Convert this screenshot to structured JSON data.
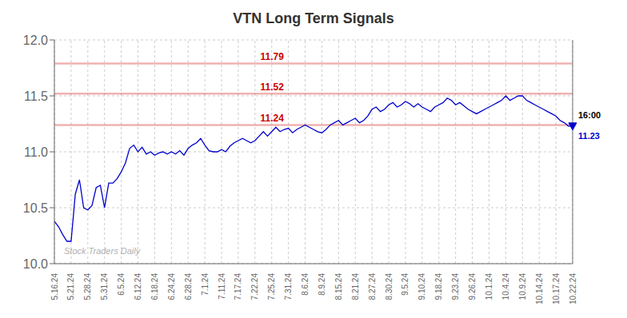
{
  "chart_data": {
    "type": "line",
    "title": "VTN Long Term Signals",
    "categories": [
      "5.16.24",
      null,
      null,
      null,
      "5.21.24",
      null,
      null,
      null,
      "5.28.24",
      null,
      null,
      null,
      "5.31.24",
      null,
      null,
      null,
      "6.5.24",
      null,
      null,
      null,
      "6.12.24",
      null,
      null,
      null,
      "6.18.24",
      null,
      null,
      null,
      "6.24.24",
      null,
      null,
      null,
      "6.28.24",
      null,
      null,
      null,
      "7.1.24",
      null,
      null,
      null,
      "7.11.24",
      null,
      null,
      null,
      "7.17.24",
      null,
      null,
      null,
      "7.22.24",
      null,
      null,
      null,
      "7.25.24",
      null,
      null,
      null,
      "7.31.24",
      null,
      null,
      null,
      "8.6.24",
      null,
      null,
      null,
      "8.9.24",
      null,
      null,
      null,
      "8.15.24",
      null,
      null,
      null,
      "8.21.24",
      null,
      null,
      null,
      "8.27.24",
      null,
      null,
      null,
      "8.30.24",
      null,
      null,
      null,
      "9.5.24",
      null,
      null,
      null,
      "9.10.24",
      null,
      null,
      null,
      "9.18.24",
      null,
      null,
      null,
      "9.23.24",
      null,
      null,
      null,
      "9.26.24",
      null,
      null,
      null,
      "10.1.24",
      null,
      null,
      null,
      "10.4.24",
      null,
      null,
      null,
      "10.9.24",
      null,
      null,
      null,
      "10.14.24",
      null,
      null,
      null,
      "10.17.24",
      null,
      null,
      null,
      "10.22.24"
    ],
    "series": [
      {
        "type": "line",
        "color": "#0000cc",
        "values": [
          10.38,
          10.33,
          10.26,
          10.2,
          10.2,
          10.62,
          10.75,
          10.5,
          10.48,
          10.52,
          10.68,
          10.7,
          10.5,
          10.72,
          10.72,
          10.76,
          10.82,
          10.9,
          11.03,
          11.06,
          11.0,
          11.04,
          10.98,
          11.0,
          10.97,
          10.99,
          11.0,
          10.98,
          11.0,
          10.98,
          11.01,
          10.97,
          11.03,
          11.06,
          11.08,
          11.12,
          11.06,
          11.01,
          11.0,
          11.0,
          11.02,
          11.0,
          11.05,
          11.08,
          11.1,
          11.12,
          11.1,
          11.08,
          11.1,
          11.14,
          11.18,
          11.14,
          11.18,
          11.22,
          11.18,
          11.2,
          11.21,
          11.17,
          11.2,
          11.22,
          11.24,
          11.22,
          11.2,
          11.18,
          11.17,
          11.2,
          11.24,
          11.26,
          11.28,
          11.24,
          11.26,
          11.28,
          11.3,
          11.26,
          11.28,
          11.32,
          11.38,
          11.4,
          11.36,
          11.38,
          11.42,
          11.44,
          11.4,
          11.42,
          11.45,
          11.43,
          11.4,
          11.43,
          11.4,
          11.38,
          11.36,
          11.4,
          11.42,
          11.44,
          11.48,
          11.46,
          11.42,
          11.44,
          11.41,
          11.38,
          11.36,
          11.34,
          11.36,
          11.38,
          11.4,
          11.42,
          11.44,
          11.46,
          11.5,
          11.46,
          11.48,
          11.5,
          11.5,
          11.46,
          11.44,
          11.42,
          11.4,
          11.38,
          11.36,
          11.34,
          11.32,
          11.28,
          11.26,
          11.23,
          11.23
        ]
      },
      {
        "type": "scatter",
        "marker": "triangle_down",
        "color": "#0000cc",
        "values": [
          null,
          null,
          null,
          null,
          null,
          null,
          null,
          null,
          null,
          null,
          null,
          null,
          null,
          null,
          null,
          null,
          null,
          null,
          null,
          null,
          null,
          null,
          null,
          null,
          null,
          null,
          null,
          null,
          null,
          null,
          null,
          null,
          null,
          null,
          null,
          null,
          null,
          null,
          null,
          null,
          null,
          null,
          null,
          null,
          null,
          null,
          null,
          null,
          null,
          null,
          null,
          null,
          null,
          null,
          null,
          null,
          null,
          null,
          null,
          null,
          null,
          null,
          null,
          null,
          null,
          null,
          null,
          null,
          null,
          null,
          null,
          null,
          null,
          null,
          null,
          null,
          null,
          null,
          null,
          null,
          null,
          null,
          null,
          null,
          null,
          null,
          null,
          null,
          null,
          null,
          null,
          null,
          null,
          null,
          null,
          null,
          null,
          null,
          null,
          null,
          null,
          null,
          null,
          null,
          null,
          null,
          null,
          null,
          null,
          null,
          null,
          null,
          null,
          null,
          null,
          null,
          null,
          null,
          null,
          null,
          null,
          null,
          null,
          null,
          11.23
        ]
      }
    ],
    "ylim": [
      10.0,
      12.0
    ],
    "yticks": [
      {
        "value": 10.0,
        "label": "10.0"
      },
      10.5,
      {
        "value": 11.0,
        "label": "11.0"
      },
      11.5,
      {
        "value": 12.0,
        "label": "12.0"
      }
    ],
    "grid": true,
    "hlines": [
      {
        "value": 11.79,
        "label": "11.79",
        "color": "#cc0000"
      },
      {
        "value": 11.52,
        "label": "11.52",
        "color": "#cc0000"
      },
      {
        "value": 11.24,
        "label": "11.24",
        "color": "#cc0000"
      }
    ],
    "vline": {
      "x": "10.22.24",
      "color": "#888888"
    },
    "annotations": [
      {
        "text": "16:00",
        "x": "10.22.24",
        "y": 11.23,
        "color": "#000000"
      },
      {
        "text": "11.23",
        "x": "10.22.24",
        "y": 11.23,
        "color": "#0000cc"
      }
    ],
    "watermark": "Stock Traders Daily"
  }
}
